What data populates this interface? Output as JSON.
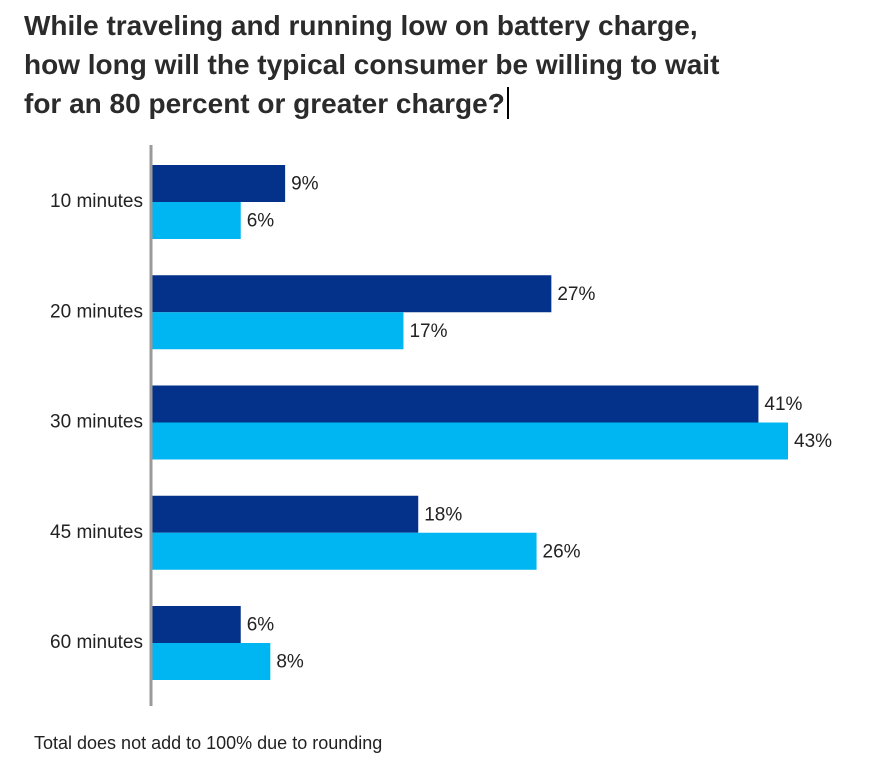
{
  "chart_data": {
    "type": "bar",
    "orientation": "horizontal",
    "title_lines": [
      "While traveling and running low on battery charge,",
      "how long will the typical consumer be willing to wait",
      "for an 80 percent or greater charge?"
    ],
    "categories": [
      "10 minutes",
      "20 minutes",
      "30 minutes",
      "45 minutes",
      "60 minutes"
    ],
    "series": [
      {
        "name": "Series 1",
        "color": "#04318a",
        "values": [
          9,
          27,
          41,
          18,
          6
        ]
      },
      {
        "name": "Series 2",
        "color": "#00b6f2",
        "values": [
          6,
          17,
          43,
          26,
          8
        ]
      }
    ],
    "value_suffix": "%",
    "xlim": [
      0,
      43
    ],
    "grid": false,
    "legend": "none",
    "footnote": "Total does not add to 100% due to rounding"
  }
}
